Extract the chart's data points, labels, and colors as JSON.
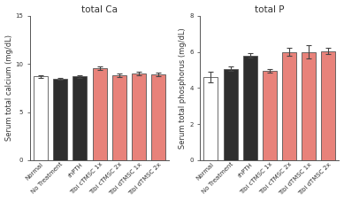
{
  "left_title": "total Ca",
  "right_title": "total P",
  "categories": [
    "Normal",
    "No Treatment",
    "rhPTH",
    "Tibi cTMSC 1x",
    "Tibi cTMSC 2x",
    "Tibi dTMSC 1x",
    "Tibi dTMSC 2x"
  ],
  "ca_values": [
    8.7,
    8.45,
    8.7,
    9.55,
    8.8,
    9.0,
    8.9
  ],
  "ca_errors": [
    0.12,
    0.12,
    0.15,
    0.18,
    0.18,
    0.18,
    0.15
  ],
  "p_values": [
    4.6,
    5.05,
    5.8,
    4.95,
    6.0,
    6.0,
    6.05
  ],
  "p_errors": [
    0.28,
    0.12,
    0.12,
    0.12,
    0.22,
    0.35,
    0.15
  ],
  "bar_colors": [
    "#ffffff",
    "#2e2e2e",
    "#2e2e2e",
    "#e8827a",
    "#e8827a",
    "#e8827a",
    "#e8827a"
  ],
  "bar_edge_color": "#555555",
  "ca_ylabel": "Serum total calcium (mg/dL)",
  "p_ylabel": "Serum total phosphorus (mg/dL)",
  "ca_ylim": [
    0,
    15
  ],
  "ca_yticks": [
    0,
    5,
    10,
    15
  ],
  "p_ylim": [
    0,
    8
  ],
  "p_yticks": [
    0,
    2,
    4,
    6,
    8
  ],
  "background_color": "#ffffff",
  "error_color": "#444444",
  "fontsize_title": 7.5,
  "fontsize_tick": 5.0,
  "fontsize_ylabel": 6.0,
  "bar_width": 0.72
}
